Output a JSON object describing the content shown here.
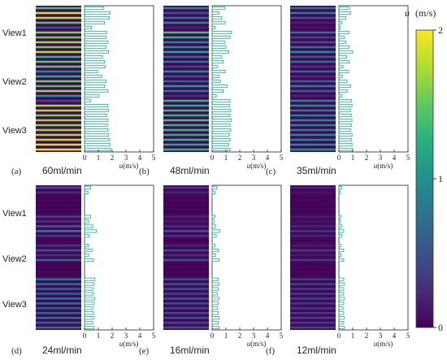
{
  "colorbar": {
    "title_var": "u",
    "title_unit": "(m/s)",
    "ticks": [
      "2",
      "1",
      "0"
    ],
    "values": [
      2,
      1,
      0
    ],
    "colormap": "viridis"
  },
  "view_labels": [
    "View1",
    "View2",
    "View3"
  ],
  "x_axis": {
    "ticks": [
      "0",
      "1",
      "2",
      "3",
      "4",
      "5"
    ],
    "label_var": "u",
    "label_unit": "(m/s)"
  },
  "chart_data": [
    {
      "type": "bar",
      "panel": "(a)",
      "flow": "60ml/min",
      "xlim": [
        0,
        5
      ],
      "xlabel": "u(m/s)",
      "values": [
        1.4,
        1.85,
        1.8,
        1.45,
        0.5,
        1.6,
        1.55,
        1.7,
        1.55,
        1.75,
        1.3,
        1.45,
        1.5,
        0.95,
        1.25,
        1.55,
        1.45,
        1.7,
        1.05,
        0.45,
        1.7,
        1.75,
        1.6,
        1.7,
        1.65,
        1.7,
        1.75,
        1.8,
        1.85,
        1.9
      ]
    },
    {
      "type": "bar",
      "panel": "(b)",
      "flow": "48ml/min",
      "xlim": [
        0,
        5
      ],
      "xlabel": "u(m/s)",
      "values": [
        0.9,
        0.5,
        0.7,
        0.95,
        0.2,
        1.4,
        1.3,
        0.9,
        1.0,
        1.2,
        0.7,
        0.8,
        0.4,
        0.95,
        0.5,
        0.6,
        1.1,
        0.8,
        0.3,
        1.3,
        1.25,
        1.35,
        1.3,
        1.4,
        1.3,
        1.35,
        1.25,
        1.3,
        1.2,
        1.3
      ]
    },
    {
      "type": "bar",
      "panel": "(c)",
      "flow": "35ml/min",
      "xlim": [
        0,
        5
      ],
      "xlabel": "u(m/s)",
      "values": [
        0.75,
        0.85,
        0.5,
        0.2,
        0.1,
        0.75,
        0.4,
        0.5,
        0.75,
        1.0,
        0.55,
        0.75,
        0.3,
        0.7,
        0.25,
        0.6,
        0.85,
        0.6,
        0.2,
        0.9,
        0.95,
        0.85,
        0.9,
        0.95,
        0.9,
        0.85,
        0.95,
        0.9,
        0.95,
        1.0
      ]
    },
    {
      "type": "bar",
      "panel": "(d)",
      "flow": "24ml/min",
      "xlim": [
        0,
        5
      ],
      "xlabel": "u(m/s)",
      "values": [
        0.45,
        0.25,
        0.0,
        0.0,
        0.0,
        0.0,
        0.45,
        0.3,
        0.6,
        0.85,
        0.35,
        0.0,
        0.3,
        0.55,
        0.3,
        0.65,
        0.0,
        0.0,
        0.0,
        0.75,
        0.7,
        0.6,
        0.65,
        0.75,
        0.7,
        0.6,
        0.65,
        0.7,
        0.6,
        0.7
      ]
    },
    {
      "type": "bar",
      "panel": "(e)",
      "flow": "16ml/min",
      "xlim": [
        0,
        5
      ],
      "xlabel": "u(m/s)",
      "values": [
        0.35,
        0.2,
        0.0,
        0.0,
        0.0,
        0.0,
        0.2,
        0.15,
        0.25,
        0.55,
        0.3,
        0.0,
        0.2,
        0.45,
        0.25,
        0.5,
        0.0,
        0.0,
        0.0,
        0.45,
        0.5,
        0.45,
        0.4,
        0.5,
        0.45,
        0.4,
        0.45,
        0.5,
        0.45,
        0.5
      ]
    },
    {
      "type": "bar",
      "panel": "(f)",
      "flow": "12ml/min",
      "xlim": [
        0,
        5
      ],
      "xlabel": "u(m/s)",
      "values": [
        0.2,
        0.1,
        0.0,
        0.0,
        0.0,
        0.0,
        0.15,
        0.1,
        0.2,
        0.35,
        0.2,
        0.0,
        0.15,
        0.35,
        0.15,
        0.35,
        0.0,
        0.0,
        0.0,
        0.35,
        0.4,
        0.35,
        0.35,
        0.4,
        0.35,
        0.3,
        0.35,
        0.4,
        0.35,
        0.4
      ]
    }
  ]
}
